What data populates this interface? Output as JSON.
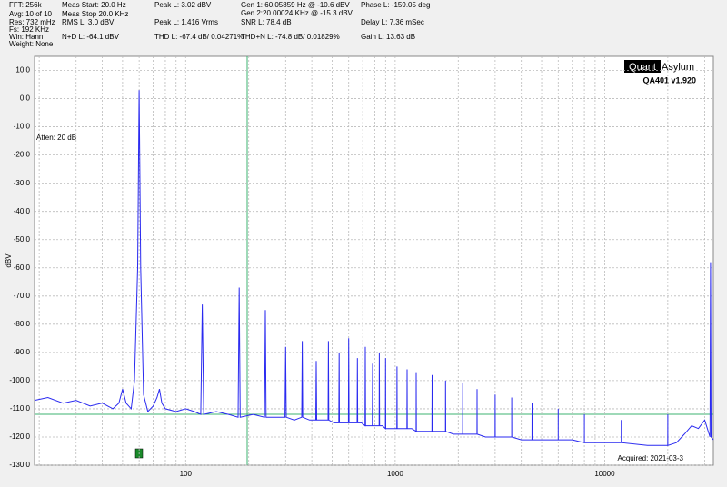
{
  "header": [
    [
      "FFT: 256k",
      "Avg: 10 of 10",
      "Res: 732 mHz",
      "Fs: 192 KHz",
      "Win: Hann",
      "Weight: None"
    ],
    [
      "Meas Start: 20.0 Hz",
      "Meas Stop 20.0 KHz",
      "RMS L: 3.0 dBV",
      "N+D L: -64.1 dBV"
    ],
    [
      "Peak L: 3.02 dBV",
      "Peak L: 1.416 Vrms",
      "THD L: -67.4 dB/ 0.04271%"
    ],
    [
      "Gen 1: 60.05859 Hz @ -10.6  dBV",
      "Gen 2:20.00024 KHz @ -15.3  dBV",
      "SNR L: 78.4 dB",
      "THD+N L: -74.8 dB/ 0.01829%"
    ],
    [
      "Phase L: -159.05 deg",
      "Delay L: 7.36 mSec",
      "Gain L: 13.63 dB"
    ]
  ],
  "logo": {
    "left": "Quant",
    "right": "Asylum",
    "version": "QA401 v1.920"
  },
  "annotation": "Atten: 20 dB",
  "acquired": "Acquired: 2021-03-3",
  "chart_data": {
    "type": "line",
    "ylabel": "dBV",
    "xscale": "log",
    "grid": true,
    "xlim": [
      19,
      33000
    ],
    "ylim": [
      -130,
      15
    ],
    "xticks": [
      100,
      1000,
      10000
    ],
    "yticks": [
      {
        "value": 10,
        "label": "10.0"
      },
      {
        "value": 0,
        "label": "0.0"
      },
      {
        "value": -10,
        "label": "-10.0"
      },
      {
        "value": -20,
        "label": "-20.0"
      },
      {
        "value": -30,
        "label": "-30.0"
      },
      {
        "value": -40,
        "label": "-40.0"
      },
      {
        "value": -50,
        "label": "-50.0"
      },
      {
        "value": -60,
        "label": "-60.0"
      },
      {
        "value": -70,
        "label": "-70.0"
      },
      {
        "value": -80,
        "label": "-80.0"
      },
      {
        "value": -90,
        "label": "-90.0"
      },
      {
        "value": -100,
        "label": "-100.0"
      },
      {
        "value": -110,
        "label": "-110.0"
      },
      {
        "value": -120,
        "label": "-120.0"
      },
      {
        "value": -130,
        "label": "-130.0"
      }
    ],
    "color": "#2a2af0",
    "x": [
      19,
      22,
      26,
      30,
      35,
      40,
      45,
      48,
      50,
      52,
      55,
      57,
      59,
      60,
      61,
      63,
      66,
      70,
      73,
      75,
      77,
      80,
      90,
      100,
      110,
      118,
      120,
      122,
      140,
      160,
      178,
      180,
      182,
      210,
      238,
      240,
      242,
      270,
      298,
      300,
      302,
      330,
      358,
      360,
      362,
      390,
      418,
      420,
      422,
      450,
      478,
      480,
      482,
      510,
      538,
      540,
      542,
      570,
      598,
      600,
      602,
      630,
      658,
      660,
      662,
      690,
      718,
      720,
      722,
      750,
      778,
      780,
      782,
      810,
      838,
      840,
      842,
      870,
      898,
      900,
      902,
      960,
      1018,
      1020,
      1022,
      1080,
      1138,
      1140,
      1142,
      1200,
      1258,
      1260,
      1262,
      1380,
      1498,
      1500,
      1502,
      1620,
      1738,
      1740,
      1742,
      1900,
      2098,
      2100,
      2102,
      2300,
      2458,
      2460,
      2462,
      2700,
      2998,
      3000,
      3002,
      3300,
      3598,
      3600,
      3602,
      4000,
      4498,
      4500,
      4502,
      5200,
      5998,
      6000,
      6002,
      7000,
      7998,
      8000,
      8002,
      10000,
      11998,
      12000,
      12002,
      16000,
      19998,
      20000,
      20002,
      22000,
      24000,
      26000,
      28000,
      30000,
      31800,
      32000,
      32200,
      33000
    ],
    "values": [
      -107,
      -106,
      -108,
      -107,
      -109,
      -108,
      -110,
      -108,
      -103,
      -108,
      -110,
      -100,
      -60,
      3,
      -60,
      -105,
      -111,
      -109,
      -106,
      -103,
      -108,
      -110,
      -111,
      -110,
      -111,
      -112,
      -73,
      -112,
      -111,
      -112,
      -113,
      -67,
      -113,
      -112,
      -113,
      -75,
      -113,
      -113,
      -113,
      -88,
      -113,
      -114,
      -113,
      -86,
      -113,
      -114,
      -114,
      -93,
      -114,
      -114,
      -114,
      -86,
      -114,
      -115,
      -115,
      -90,
      -115,
      -115,
      -115,
      -85,
      -115,
      -115,
      -115,
      -92,
      -115,
      -115,
      -116,
      -88,
      -116,
      -116,
      -116,
      -94,
      -116,
      -116,
      -116,
      -90,
      -116,
      -116,
      -117,
      -92,
      -117,
      -117,
      -117,
      -95,
      -117,
      -117,
      -117,
      -96,
      -117,
      -117,
      -118,
      -97,
      -118,
      -118,
      -118,
      -98,
      -118,
      -118,
      -118,
      -100,
      -118,
      -119,
      -119,
      -101,
      -119,
      -119,
      -119,
      -103,
      -119,
      -120,
      -120,
      -105,
      -120,
      -120,
      -120,
      -106,
      -120,
      -121,
      -121,
      -108,
      -121,
      -121,
      -121,
      -110,
      -121,
      -121,
      -122,
      -112,
      -122,
      -122,
      -122,
      -114,
      -122,
      -123,
      -123,
      -112,
      -123,
      -122,
      -119,
      -116,
      -117,
      -114,
      -120,
      -58,
      -120,
      -121
    ]
  }
}
